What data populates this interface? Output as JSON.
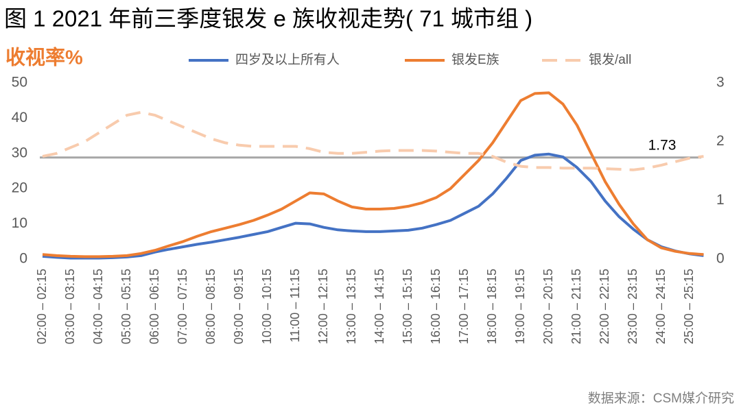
{
  "chart_data": {
    "type": "line",
    "title": "图 1  2021 年前三季度银发 e 族收视走势( 71 城市组 )",
    "y_label": "收视率%",
    "source": "数据来源：CSM媒介研究",
    "categories": [
      "02:00 – 02:15",
      null,
      "03:00 – 03:15",
      null,
      "04:00 – 04:15",
      null,
      "05:00 – 05:15",
      null,
      "06:00 – 06:15",
      null,
      "07:00 – 07:15",
      null,
      "08:00 – 08:15",
      null,
      "09:00 – 09:15",
      null,
      "10:00 – 10:15",
      null,
      "11:00 – 11:15",
      null,
      "12:00 – 12:15",
      null,
      "13:00 – 13:15",
      null,
      "14:00 – 14:15",
      null,
      "15:00 – 15:15",
      null,
      "16:00 – 16:15",
      null,
      "17:00 – 17:15",
      null,
      "18:00 – 18:15",
      null,
      "19:00 – 19:15",
      null,
      "20:00 – 20:15",
      null,
      "21:00 – 21:15",
      null,
      "22:00 – 22:15",
      null,
      "23:00 – 23:15",
      null,
      "24:00 – 24:15",
      null,
      "25:00 – 25:15",
      null
    ],
    "series": [
      {
        "name": "四岁及以上所有人",
        "color": "#4472c4",
        "style": "solid",
        "values": [
          0.8,
          0.5,
          0.3,
          0.3,
          0.3,
          0.4,
          0.6,
          1.0,
          2,
          2.8,
          3.5,
          4.2,
          4.8,
          5.5,
          6.2,
          7,
          7.8,
          9,
          10.2,
          10,
          9,
          8.3,
          8,
          7.8,
          7.8,
          8,
          8.2,
          8.8,
          9.8,
          11,
          13,
          15,
          18.5,
          23,
          28,
          29.5,
          29.8,
          29,
          26,
          22,
          16.5,
          12,
          8.5,
          5.5,
          3.5,
          2.3,
          1.5,
          1
        ]
      },
      {
        "name": "银发E族",
        "color": "#ed7d31",
        "style": "solid",
        "values": [
          1.3,
          1,
          0.8,
          0.7,
          0.7,
          0.8,
          1.0,
          1.6,
          2.5,
          3.8,
          5,
          6.5,
          7.8,
          8.8,
          9.8,
          11,
          12.5,
          14.2,
          16.5,
          18.8,
          18.5,
          16.5,
          14.8,
          14.2,
          14.2,
          14.4,
          15,
          16,
          17.5,
          20,
          24,
          28,
          33,
          39,
          45,
          47,
          47.2,
          44,
          38,
          30,
          22,
          15.5,
          10,
          5.5,
          3.2,
          2.2,
          1.6,
          1.3
        ]
      },
      {
        "name": "银发/all",
        "color": "#f8cbad",
        "style": "dashed",
        "axis": "y2",
        "values": [
          1.75,
          1.8,
          1.9,
          2.0,
          2.15,
          2.3,
          2.45,
          2.5,
          2.45,
          2.35,
          2.25,
          2.15,
          2.05,
          1.98,
          1.94,
          1.92,
          1.92,
          1.92,
          1.92,
          1.88,
          1.82,
          1.8,
          1.8,
          1.82,
          1.84,
          1.85,
          1.85,
          1.85,
          1.84,
          1.82,
          1.8,
          1.8,
          1.75,
          1.65,
          1.58,
          1.56,
          1.56,
          1.55,
          1.55,
          1.55,
          1.54,
          1.53,
          1.52,
          1.55,
          1.6,
          1.66,
          1.72,
          1.75
        ]
      }
    ],
    "reference": {
      "value": 1.73,
      "axis": "y2",
      "color": "#a6a6a6"
    },
    "ylim": [
      0,
      50
    ],
    "yticks": [
      0,
      10,
      20,
      30,
      40,
      50
    ],
    "y2lim": [
      0,
      3
    ],
    "y2ticks": [
      0,
      1,
      2,
      3
    ],
    "legend": "top"
  }
}
